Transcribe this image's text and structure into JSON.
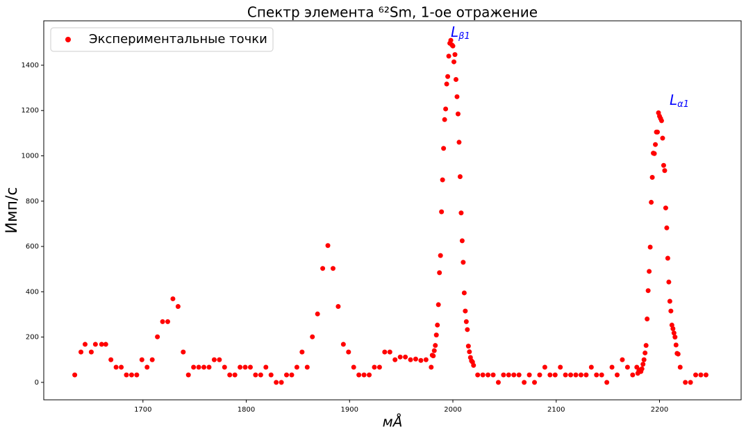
{
  "chart_data": {
    "type": "scatter",
    "title": "Спектр элемента ⁶²Sm, 1-ое отражение",
    "x_label": "мÅ",
    "y_label": "Имп/с",
    "legend_position": "upper left",
    "annotations": [
      {
        "text": "L",
        "subscript": "β1"
      },
      {
        "text": "L",
        "subscript": "α1"
      }
    ],
    "xlim": [
      1604,
      2279
    ],
    "ylim": [
      -77,
      1596
    ],
    "xticks": [
      1700,
      1800,
      1900,
      2000,
      2100,
      2200
    ],
    "yticks": [
      0,
      200,
      400,
      600,
      800,
      1000,
      1200,
      1400
    ],
    "series": [
      {
        "name": "Экспериментальные точки",
        "color": "#ff0000",
        "x": [
          1634,
          1640,
          1644,
          1650,
          1654,
          1660,
          1664,
          1669,
          1674,
          1679,
          1684,
          1689,
          1694,
          1699,
          1704,
          1709,
          1714,
          1719,
          1724,
          1729,
          1734,
          1739,
          1744,
          1749,
          1754,
          1759,
          1764,
          1769,
          1774,
          1779,
          1784,
          1789,
          1794,
          1799,
          1804,
          1809,
          1814,
          1819,
          1824,
          1829,
          1834,
          1839,
          1844,
          1849,
          1854,
          1859,
          1864,
          1869,
          1874,
          1879,
          1884,
          1889,
          1894,
          1899,
          1904,
          1909,
          1914,
          1919,
          1924,
          1929,
          1934,
          1939,
          1944,
          1949,
          1954,
          1959,
          1964,
          1969,
          1974,
          1979,
          1980,
          1981,
          1982,
          1983,
          1984,
          1985,
          1986,
          1987,
          1988,
          1989,
          1990,
          1991,
          1992,
          1993,
          1994,
          1995,
          1996,
          1997,
          1998,
          1999,
          2000,
          2001,
          2002,
          2003,
          2004,
          2005,
          2006,
          2007,
          2008,
          2009,
          2010,
          2011,
          2012,
          2013,
          2014,
          2015,
          2016,
          2017,
          2018,
          2019,
          2020,
          2024,
          2029,
          2034,
          2039,
          2044,
          2049,
          2054,
          2059,
          2064,
          2069,
          2074,
          2079,
          2084,
          2089,
          2094,
          2099,
          2104,
          2109,
          2114,
          2119,
          2124,
          2129,
          2134,
          2139,
          2144,
          2149,
          2154,
          2159,
          2164,
          2169,
          2174,
          2178,
          2179,
          2180,
          2181,
          2182,
          2183,
          2184,
          2185,
          2186,
          2187,
          2188,
          2189,
          2190,
          2191,
          2192,
          2193,
          2194,
          2195,
          2196,
          2197,
          2198,
          2199,
          2200,
          2201,
          2202,
          2203,
          2204,
          2205,
          2206,
          2207,
          2208,
          2209,
          2210,
          2211,
          2212,
          2213,
          2214,
          2215,
          2216,
          2217,
          2218,
          2220,
          2225,
          2230,
          2235,
          2240,
          2245
        ],
        "values": [
          33,
          134,
          168,
          134,
          168,
          168,
          168,
          100,
          67,
          67,
          33,
          33,
          33,
          100,
          67,
          100,
          201,
          268,
          268,
          369,
          335,
          134,
          33,
          67,
          67,
          67,
          67,
          100,
          100,
          67,
          33,
          33,
          67,
          67,
          67,
          33,
          33,
          67,
          33,
          0,
          0,
          33,
          33,
          67,
          134,
          67,
          201,
          302,
          503,
          604,
          503,
          335,
          168,
          134,
          67,
          33,
          33,
          33,
          67,
          67,
          134,
          134,
          100,
          112,
          112,
          100,
          103,
          97,
          100,
          67,
          120,
          117,
          140,
          163,
          209,
          253,
          343,
          484,
          560,
          753,
          894,
          1033,
          1160,
          1207,
          1317,
          1350,
          1440,
          1497,
          1510,
          1490,
          1485,
          1415,
          1447,
          1337,
          1261,
          1185,
          1060,
          908,
          748,
          625,
          530,
          395,
          315,
          268,
          233,
          160,
          135,
          110,
          95,
          90,
          75,
          33,
          33,
          33,
          33,
          0,
          33,
          33,
          33,
          33,
          0,
          33,
          0,
          33,
          67,
          33,
          33,
          67,
          33,
          33,
          33,
          33,
          33,
          67,
          33,
          33,
          0,
          67,
          33,
          100,
          67,
          33,
          67,
          40,
          50,
          55,
          48,
          60,
          80,
          100,
          130,
          163,
          280,
          405,
          490,
          597,
          795,
          905,
          1012,
          1010,
          1050,
          1105,
          1105,
          1190,
          1175,
          1165,
          1155,
          1078,
          958,
          935,
          770,
          682,
          548,
          443,
          358,
          315,
          253,
          237,
          218,
          200,
          165,
          128,
          125,
          67,
          0,
          0,
          33,
          33,
          33
        ]
      }
    ]
  }
}
